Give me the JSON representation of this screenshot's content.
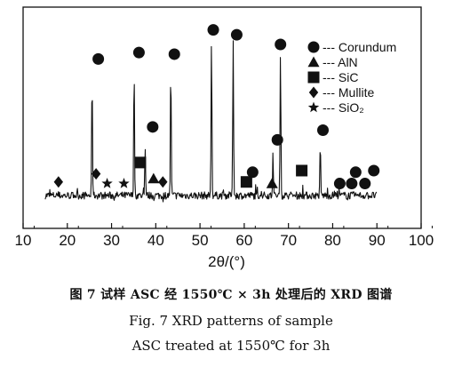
{
  "chart_data": {
    "type": "line",
    "xlabel": "2θ/(°)",
    "ylabel": "",
    "xlim": [
      10,
      100
    ],
    "xticks": [
      "10",
      "20",
      "30",
      "40",
      "50",
      "60",
      "70",
      "80",
      "90",
      "100"
    ],
    "grid": false,
    "legend_placement": "top-right",
    "pattern_x_range": [
      15,
      90
    ],
    "peaks": [
      {
        "two_theta": 25.6,
        "rel_intensity": 0.72
      },
      {
        "two_theta": 35.1,
        "rel_intensity": 0.75
      },
      {
        "two_theta": 37.6,
        "rel_intensity": 0.3
      },
      {
        "two_theta": 43.4,
        "rel_intensity": 0.78
      },
      {
        "two_theta": 52.6,
        "rel_intensity": 0.96
      },
      {
        "two_theta": 57.5,
        "rel_intensity": 0.95
      },
      {
        "two_theta": 66.5,
        "rel_intensity": 0.26
      },
      {
        "two_theta": 68.2,
        "rel_intensity": 0.86
      },
      {
        "two_theta": 77.2,
        "rel_intensity": 0.3
      }
    ],
    "series": [
      {
        "name": "Corundum",
        "marker": "circle",
        "points": [
          [
            27.0,
            0.8
          ],
          [
            36.2,
            0.84
          ],
          [
            44.2,
            0.83
          ],
          [
            53.0,
            0.98
          ],
          [
            58.3,
            0.95
          ],
          [
            68.2,
            0.89
          ],
          [
            39.3,
            0.38
          ],
          [
            61.9,
            0.1
          ],
          [
            67.5,
            0.3
          ],
          [
            77.8,
            0.36
          ],
          [
            81.6,
            0.03
          ],
          [
            84.3,
            0.03
          ],
          [
            85.2,
            0.1
          ],
          [
            87.3,
            0.03
          ],
          [
            89.3,
            0.11
          ]
        ]
      },
      {
        "name": "AlN",
        "marker": "triangle",
        "points": [
          [
            39.5,
            0.06
          ],
          [
            66.3,
            0.03
          ]
        ]
      },
      {
        "name": "SiC",
        "marker": "square",
        "points": [
          [
            36.5,
            0.16
          ],
          [
            60.5,
            0.04
          ],
          [
            73.0,
            0.11
          ]
        ]
      },
      {
        "name": "Mullite",
        "marker": "diamond",
        "points": [
          [
            18.0,
            0.04
          ],
          [
            26.5,
            0.09
          ],
          [
            41.6,
            0.04
          ]
        ]
      },
      {
        "name": "SiO₂",
        "marker": "star",
        "points": [
          [
            29.0,
            0.03
          ],
          [
            32.8,
            0.03
          ]
        ]
      }
    ]
  },
  "captions": {
    "cn": "图 7   试样 ASC 经 1550℃ × 3h 处理后的 XRD 图谱",
    "en_line1": "Fig. 7    XRD patterns of sample",
    "en_line2": "ASC treated at 1550℃ for 3h"
  }
}
